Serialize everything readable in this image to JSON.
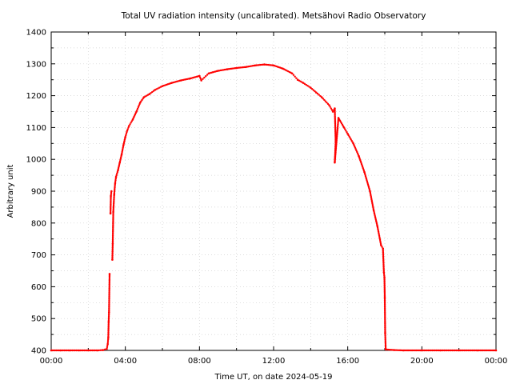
{
  "chart_data": {
    "type": "scatter",
    "title": "Total UV radiation intensity (uncalibrated). Metsähovi Radio Observatory",
    "xlabel": "Time UT, on date 2024-05-19",
    "ylabel": "Arbitrary unit",
    "xlim_hours": [
      0,
      24
    ],
    "ylim": [
      400,
      1400
    ],
    "x_ticks": [
      {
        "hour": 0,
        "label": "00:00"
      },
      {
        "hour": 4,
        "label": "04:00"
      },
      {
        "hour": 8,
        "label": "08:00"
      },
      {
        "hour": 12,
        "label": "12:00"
      },
      {
        "hour": 16,
        "label": "16:00"
      },
      {
        "hour": 20,
        "label": "20:00"
      },
      {
        "hour": 24,
        "label": "00:00"
      }
    ],
    "y_ticks": [
      400,
      500,
      600,
      700,
      800,
      900,
      1000,
      1100,
      1200,
      1300,
      1400
    ],
    "grid": true,
    "marker_color": "#ff0000",
    "series": [
      {
        "points": [
          [
            0.0,
            400
          ],
          [
            0.5,
            400
          ],
          [
            1.0,
            400
          ],
          [
            1.5,
            400
          ],
          [
            2.0,
            400
          ],
          [
            2.5,
            400
          ],
          [
            2.8,
            401
          ],
          [
            3.0,
            405
          ],
          [
            3.05,
            420
          ],
          [
            3.08,
            440
          ],
          [
            3.1,
            490
          ],
          [
            3.12,
            520
          ],
          [
            3.15,
            640
          ],
          [
            3.2,
            830
          ],
          [
            3.22,
            885
          ],
          [
            3.25,
            900
          ],
          [
            3.3,
            685
          ],
          [
            3.32,
            735
          ],
          [
            3.35,
            835
          ],
          [
            3.4,
            890
          ],
          [
            3.45,
            925
          ],
          [
            3.5,
            945
          ],
          [
            3.6,
            965
          ],
          [
            3.7,
            990
          ],
          [
            3.8,
            1015
          ],
          [
            3.9,
            1045
          ],
          [
            4.0,
            1070
          ],
          [
            4.1,
            1090
          ],
          [
            4.2,
            1105
          ],
          [
            4.4,
            1125
          ],
          [
            4.6,
            1150
          ],
          [
            4.8,
            1178
          ],
          [
            5.0,
            1195
          ],
          [
            5.3,
            1205
          ],
          [
            5.6,
            1218
          ],
          [
            6.0,
            1230
          ],
          [
            6.5,
            1240
          ],
          [
            7.0,
            1248
          ],
          [
            7.5,
            1254
          ],
          [
            8.0,
            1262
          ],
          [
            8.1,
            1248
          ],
          [
            8.5,
            1270
          ],
          [
            9.0,
            1278
          ],
          [
            9.5,
            1283
          ],
          [
            10.0,
            1287
          ],
          [
            10.5,
            1290
          ],
          [
            11.0,
            1295
          ],
          [
            11.5,
            1298
          ],
          [
            12.0,
            1295
          ],
          [
            12.5,
            1285
          ],
          [
            13.0,
            1270
          ],
          [
            13.3,
            1250
          ],
          [
            13.6,
            1240
          ],
          [
            14.0,
            1225
          ],
          [
            14.3,
            1210
          ],
          [
            14.6,
            1195
          ],
          [
            15.0,
            1170
          ],
          [
            15.2,
            1150
          ],
          [
            15.3,
            1160
          ],
          [
            15.35,
            1055
          ],
          [
            15.3,
            990
          ],
          [
            15.5,
            1130
          ],
          [
            15.8,
            1100
          ],
          [
            16.0,
            1080
          ],
          [
            16.3,
            1050
          ],
          [
            16.6,
            1010
          ],
          [
            16.9,
            960
          ],
          [
            17.2,
            900
          ],
          [
            17.4,
            840
          ],
          [
            17.6,
            790
          ],
          [
            17.8,
            730
          ],
          [
            17.9,
            720
          ],
          [
            17.95,
            645
          ],
          [
            17.98,
            630
          ],
          [
            18.0,
            565
          ],
          [
            18.02,
            455
          ],
          [
            18.05,
            403
          ],
          [
            18.5,
            401
          ],
          [
            19.0,
            400
          ],
          [
            20.0,
            400
          ],
          [
            21.0,
            400
          ],
          [
            22.0,
            400
          ],
          [
            23.0,
            400
          ],
          [
            24.0,
            400
          ]
        ]
      }
    ]
  }
}
